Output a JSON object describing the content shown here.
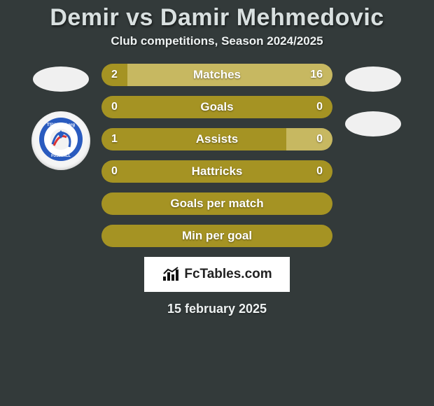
{
  "title": "Demir vs Damir Mehmedovic",
  "subtitle": "Club competitions, Season 2024/2025",
  "date": "15 february 2025",
  "brand": "FcTables.com",
  "colors": {
    "background": "#333a3a",
    "bar_primary": "#a59323",
    "bar_secondary": "#c7b861",
    "text": "#ffffff",
    "title_text": "#d9e0e0"
  },
  "badge": {
    "left": {
      "text_top": "TSV Hartberg",
      "text_bottom": "FUSSBALL",
      "ring_color": "#2a5bbf",
      "inner_bg": "#ffffff",
      "accent": "#d33"
    }
  },
  "stats": [
    {
      "label": "Matches",
      "left_value": "2",
      "right_value": "16",
      "left_ratio": 0.111,
      "left_color": "#a59323",
      "right_color": "#c7b861"
    },
    {
      "label": "Goals",
      "left_value": "0",
      "right_value": "0",
      "left_ratio": 1.0,
      "left_color": "#a59323",
      "right_color": "#c7b861"
    },
    {
      "label": "Assists",
      "left_value": "1",
      "right_value": "0",
      "left_ratio": 0.8,
      "left_color": "#a59323",
      "right_color": "#c7b861"
    },
    {
      "label": "Hattricks",
      "left_value": "0",
      "right_value": "0",
      "left_ratio": 1.0,
      "left_color": "#a59323",
      "right_color": "#c7b861"
    },
    {
      "label": "Goals per match",
      "left_value": "",
      "right_value": "",
      "left_ratio": 1.0,
      "left_color": "#a59323",
      "right_color": "#c7b861"
    },
    {
      "label": "Min per goal",
      "left_value": "",
      "right_value": "",
      "left_ratio": 1.0,
      "left_color": "#a59323",
      "right_color": "#c7b861"
    }
  ]
}
